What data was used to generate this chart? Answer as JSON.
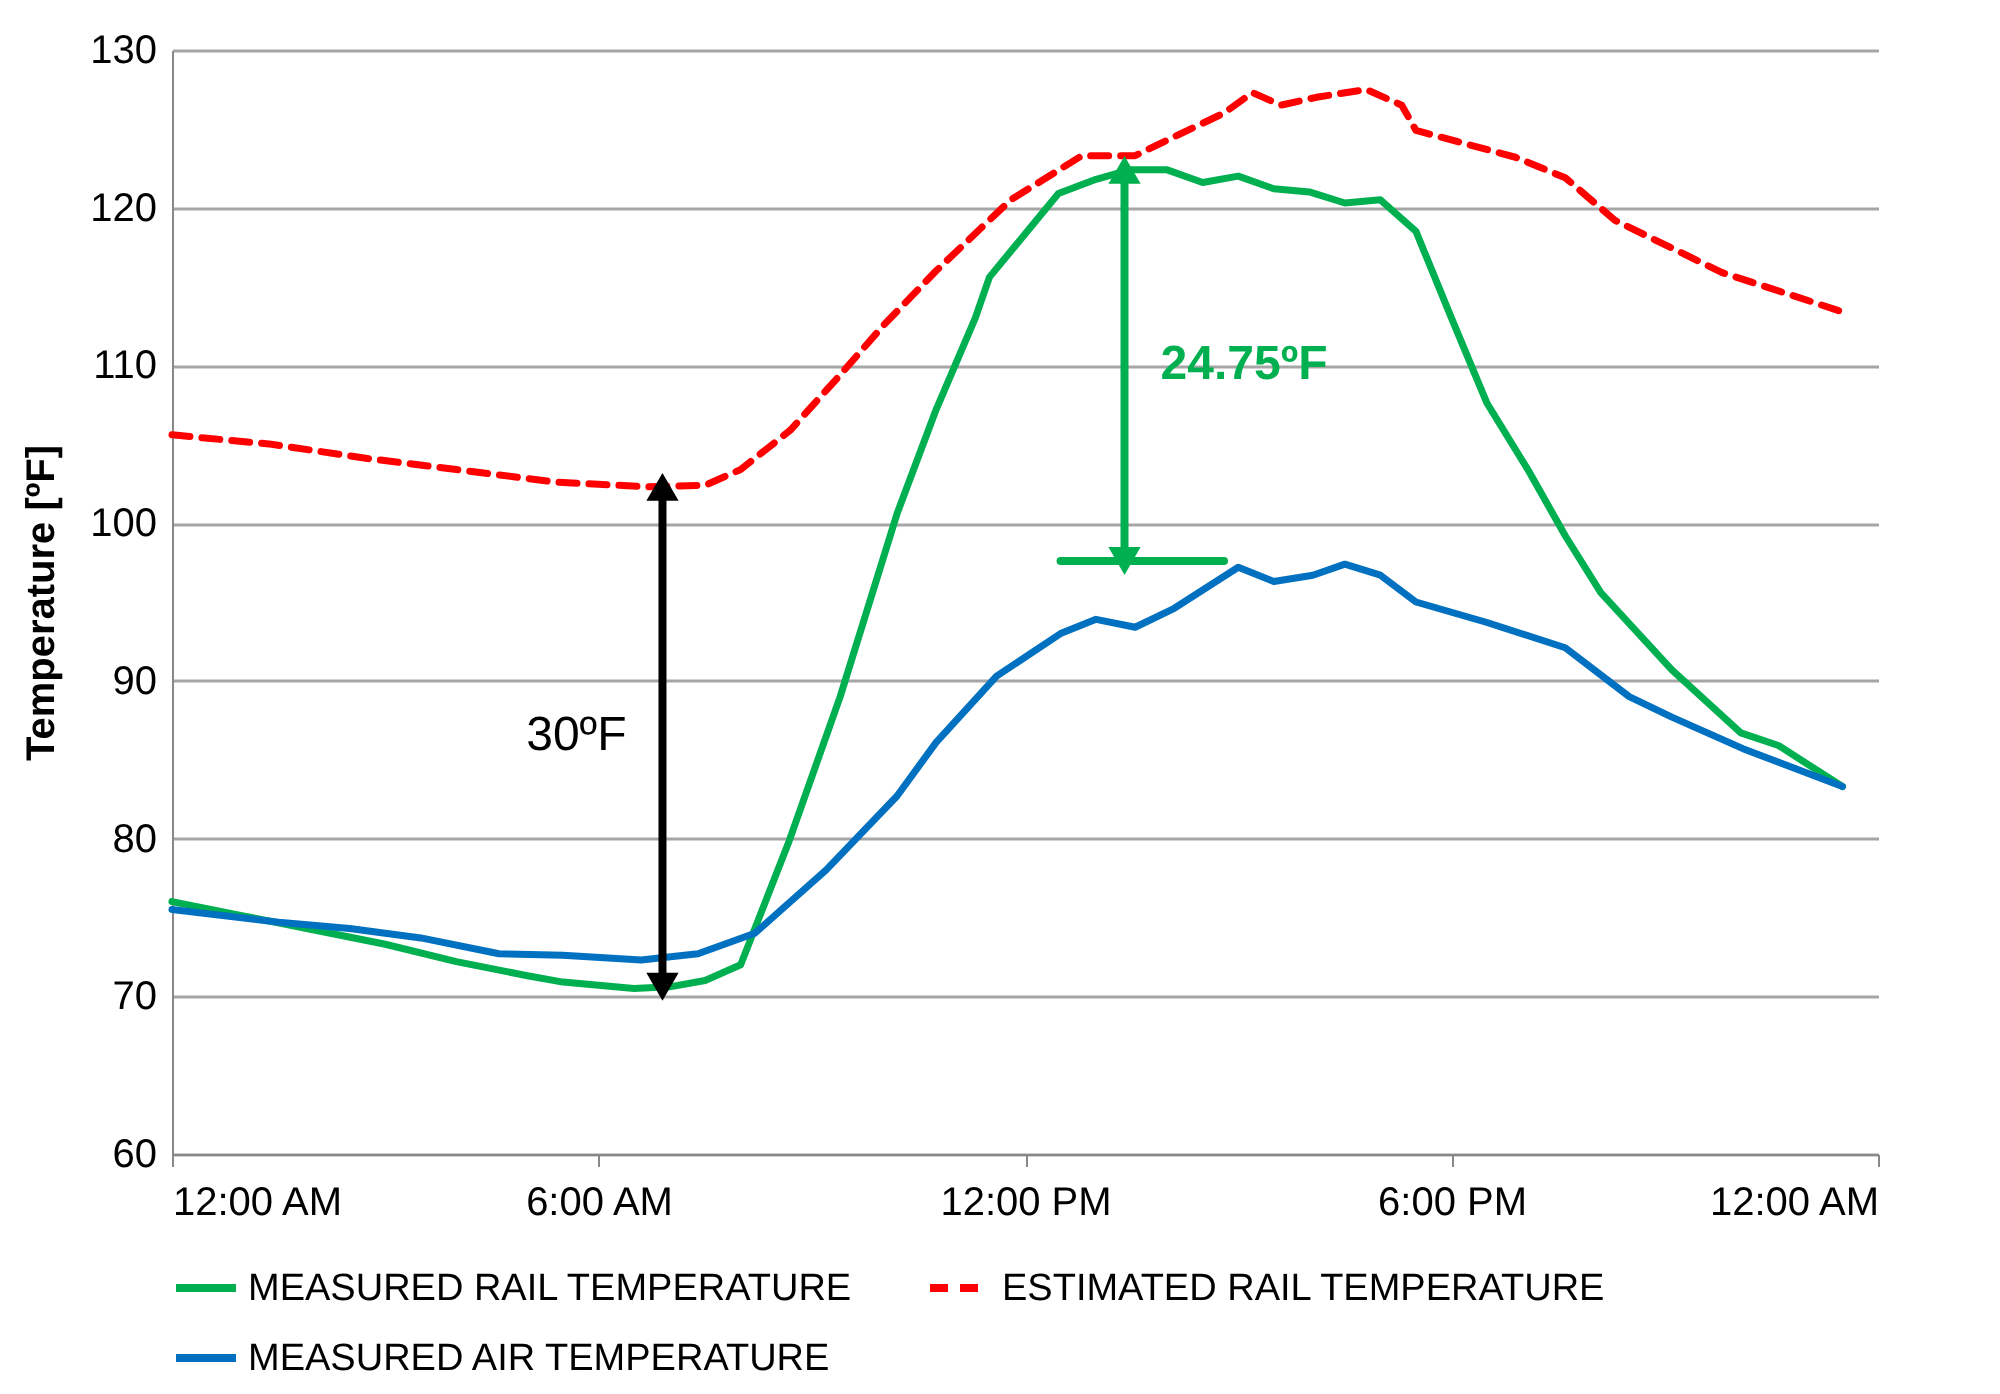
{
  "chart_data": {
    "type": "line",
    "ylabel": "Temperature [ºF]",
    "xlim": [
      0,
      24
    ],
    "xticks": [
      {
        "value": 0,
        "label": "12:00 AM"
      },
      {
        "value": 6,
        "label": "6:00 AM"
      },
      {
        "value": 12,
        "label": "12:00 PM"
      },
      {
        "value": 18,
        "label": "6:00 PM"
      },
      {
        "value": 24,
        "label": "12:00 AM"
      }
    ],
    "ylim": [
      60,
      130
    ],
    "yticks": [
      60,
      70,
      80,
      90,
      100,
      110,
      120,
      130
    ],
    "grid": "y",
    "legend": "bottom",
    "marker": "none",
    "series": [
      {
        "name": "MEASURED RAIL TEMPERATURE",
        "color": "#00b050",
        "line_style": "solid",
        "x": [
          0,
          1,
          2,
          3,
          4,
          5,
          5.5,
          6,
          6.5,
          7,
          7.5,
          8,
          8.67,
          9.4,
          10.2,
          10.75,
          11.3,
          11.5,
          12.47,
          13.0,
          13.47,
          14,
          14.5,
          15,
          15.5,
          16,
          16.5,
          17,
          17.5,
          18,
          18.5,
          19.1,
          19.6,
          20.1,
          21.1,
          22.07,
          22.6,
          23.5
        ],
        "values": [
          76,
          75.1,
          74.2,
          73.3,
          72.2,
          71.3,
          70.9,
          70.7,
          70.5,
          70.6,
          71,
          72,
          79.7,
          89,
          100.6,
          107.2,
          113,
          115.6,
          120.9,
          121.8,
          122.4,
          122.4,
          121.6,
          122,
          121.2,
          121,
          120.3,
          120.5,
          118.5,
          113,
          107.6,
          103.2,
          99.2,
          95.6,
          90.7,
          86.7,
          85.9,
          83.3
        ]
      },
      {
        "name": "ESTIMATED RAIL TEMPERATURE",
        "color": "#ff0000",
        "line_style": "dashed",
        "x": [
          0,
          1.4,
          2.75,
          4,
          5.4,
          6.7,
          7.5,
          8,
          8.7,
          9.4,
          10,
          10.75,
          11.8,
          12.8,
          13.55,
          14.1,
          14.8,
          15.2,
          15.6,
          16.1,
          16.8,
          17.3,
          17.5,
          18.9,
          19.6,
          20.3,
          21.8,
          23.5
        ],
        "values": [
          105.6,
          105,
          104.1,
          103.4,
          102.6,
          102.3,
          102.4,
          103.4,
          105.9,
          109.4,
          112.5,
          116,
          120.5,
          123.3,
          123.3,
          124.5,
          126,
          127.3,
          126.5,
          127,
          127.5,
          126.5,
          124.9,
          123.2,
          121.9,
          119.2,
          115.9,
          113.4
        ]
      },
      {
        "name": "MEASURED AIR TEMPERATURE",
        "color": "#0070c0",
        "line_style": "solid",
        "x": [
          0,
          1.5,
          2.5,
          3.5,
          4.6,
          5.5,
          6.6,
          7.4,
          8.2,
          9.2,
          10.2,
          10.75,
          11.6,
          12.5,
          13.0,
          13.55,
          14.1,
          15,
          15.5,
          16.05,
          16.5,
          17,
          17.5,
          18.5,
          19.6,
          20.5,
          21.1,
          22.1,
          23.5
        ],
        "values": [
          75.5,
          74.7,
          74.3,
          73.7,
          72.7,
          72.6,
          72.3,
          72.7,
          74,
          78,
          82.7,
          86.1,
          90.3,
          93,
          93.9,
          93.4,
          94.6,
          97.2,
          96.3,
          96.7,
          97.4,
          96.7,
          95,
          93.7,
          92.1,
          89,
          87.7,
          85.7,
          83.3
        ]
      },
      {
        "type": "line",
        "color": "#000000",
        "line_style": "solid",
        "marker": "triangle",
        "x": [
          6.9,
          6.9
        ],
        "values": [
          102.3,
          70.6
        ]
      },
      {
        "type": "line",
        "color": "#00b050",
        "line_style": "solid",
        "marker": "triangle",
        "x": [
          13.4,
          13.4
        ],
        "values": [
          122.4,
          97.6
        ]
      },
      {
        "type": "line",
        "color": "#00b050",
        "line_style": "solid",
        "x": [
          12.5,
          14.8
        ],
        "values": [
          97.6,
          97.6
        ]
      }
    ],
    "annotations": [
      {
        "text": "30ºF",
        "x": 6.9,
        "y": 86.5
      },
      {
        "text": "24.75ºF",
        "x": 13.4,
        "y": 110
      }
    ]
  }
}
